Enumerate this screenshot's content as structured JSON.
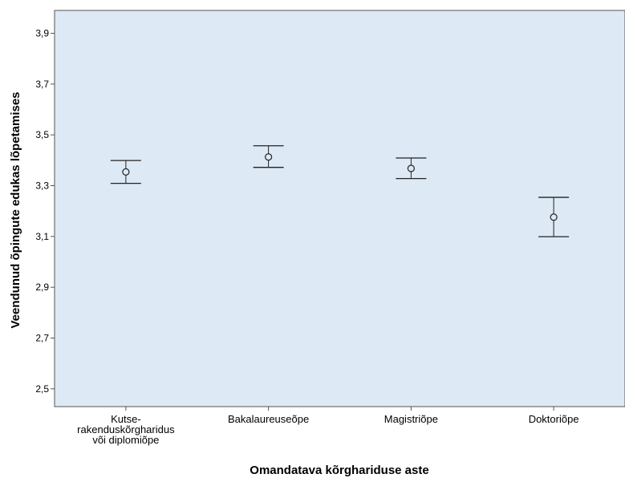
{
  "colors": {
    "plot_background": "#dde9f5",
    "axis": "#555555",
    "marker": "#222222"
  },
  "chart_data": {
    "type": "errorbar",
    "xlabel": "Omandatava kõrghariduse aste",
    "ylabel": "Veendunud õpingute edukas lõpetamises",
    "categories": [
      [
        "Kutse-",
        "rakenduskõrgharidus",
        "või diplomiõpe"
      ],
      [
        "Bakalaureuseõpe"
      ],
      [
        "Magistriõpe"
      ],
      [
        "Doktoriõpe"
      ]
    ],
    "points": [
      {
        "mean": 3.354,
        "lower": 3.309,
        "upper": 3.399
      },
      {
        "mean": 3.413,
        "lower": 3.372,
        "upper": 3.457
      },
      {
        "mean": 3.368,
        "lower": 3.328,
        "upper": 3.409
      },
      {
        "mean": 3.176,
        "lower": 3.099,
        "upper": 3.254
      }
    ],
    "ylim": [
      2.43,
      3.99
    ],
    "yticks": [
      2.5,
      2.7,
      2.9,
      3.1,
      3.3,
      3.5,
      3.7,
      3.9
    ],
    "ytick_labels": [
      "2,5",
      "2,7",
      "2,9",
      "3,1",
      "3,3",
      "3,5",
      "3,7",
      "3,9"
    ],
    "grid": false,
    "legend": "none"
  }
}
